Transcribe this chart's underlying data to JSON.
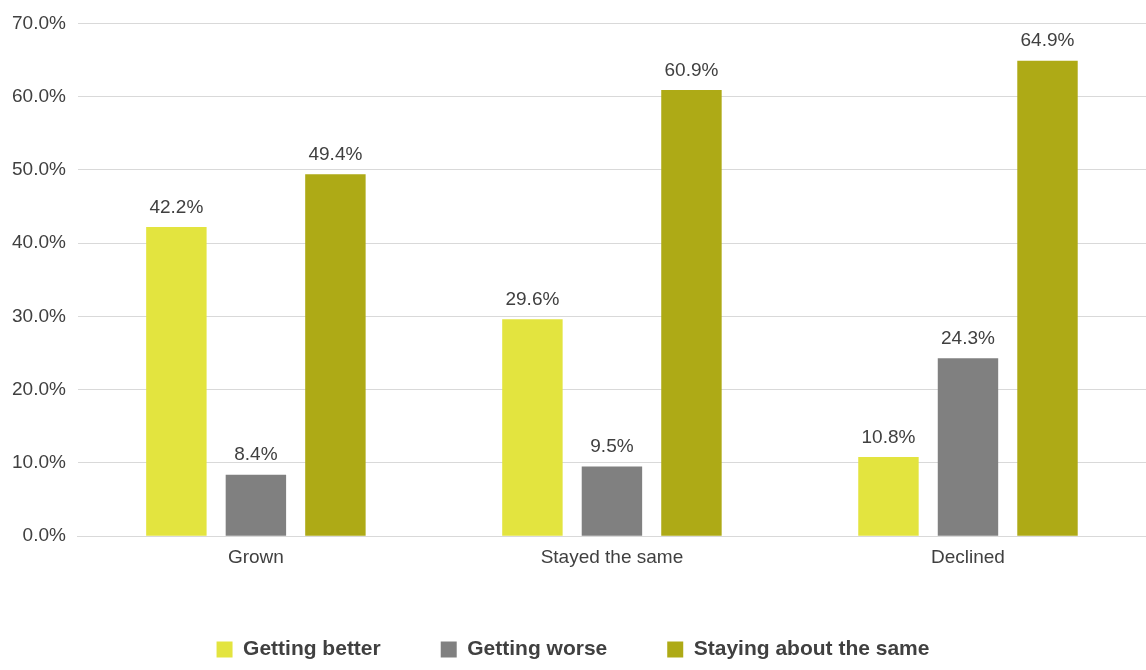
{
  "chart_data": {
    "type": "bar",
    "categories": [
      "Grown",
      "Stayed the same",
      "Declined"
    ],
    "series": [
      {
        "name": "Getting better",
        "color": "#e3e43f",
        "values": [
          42.2,
          29.6,
          10.8
        ],
        "value_labels": [
          "42.2%",
          "29.6%",
          "10.8%"
        ]
      },
      {
        "name": "Getting worse",
        "color": "#808080",
        "values": [
          8.4,
          9.5,
          24.3
        ],
        "value_labels": [
          "8.4%",
          "9.5%",
          "24.3%"
        ]
      },
      {
        "name": "Staying about the same",
        "color": "#aeaa16",
        "values": [
          49.4,
          60.9,
          64.9
        ],
        "value_labels": [
          "49.4%",
          "60.9%",
          "64.9%"
        ]
      }
    ],
    "ylim": [
      0,
      70
    ],
    "yticks": [
      {
        "value": 0,
        "label": "0.0%"
      },
      {
        "value": 10,
        "label": "10.0%"
      },
      {
        "value": 20,
        "label": "20.0%"
      },
      {
        "value": 30,
        "label": "30.0%"
      },
      {
        "value": 40,
        "label": "40.0%"
      },
      {
        "value": 50,
        "label": "50.0%"
      },
      {
        "value": 60,
        "label": "60.0%"
      },
      {
        "value": 70,
        "label": "70.0%"
      }
    ],
    "grid": "y",
    "legend": "bottom"
  }
}
